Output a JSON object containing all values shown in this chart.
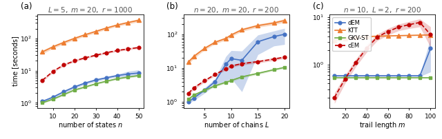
{
  "panel_a": {
    "title": "$L = 5,\\ m = 20,\\ r = 1000$",
    "xlabel": "number of states $n$",
    "x": [
      5,
      10,
      15,
      20,
      25,
      30,
      35,
      40,
      45,
      50
    ],
    "dEM": [
      1.1,
      1.5,
      2.2,
      3.1,
      4.1,
      5.1,
      6.0,
      7.0,
      7.8,
      8.4
    ],
    "KTT": [
      38,
      55,
      75,
      100,
      130,
      165,
      210,
      260,
      310,
      365
    ],
    "GKV": [
      1.0,
      1.3,
      1.8,
      2.5,
      3.1,
      3.9,
      4.7,
      5.6,
      6.3,
      7.0
    ],
    "cEM": [
      5.0,
      9.5,
      15,
      20,
      25,
      30,
      36,
      42,
      47,
      52
    ],
    "dEM_lo": [
      1.0,
      1.35,
      1.95,
      2.8,
      3.7,
      4.6,
      5.5,
      6.3,
      6.5,
      6.8
    ],
    "dEM_hi": [
      1.2,
      1.65,
      2.45,
      3.4,
      4.5,
      5.6,
      6.5,
      7.7,
      9.5,
      10.5
    ],
    "KTT_lo": [
      33,
      49,
      67,
      90,
      117,
      149,
      190,
      236,
      280,
      325
    ],
    "KTT_hi": [
      43,
      61,
      83,
      110,
      143,
      181,
      230,
      284,
      340,
      405
    ],
    "GKV_lo": [
      0.95,
      1.23,
      1.7,
      2.35,
      2.9,
      3.65,
      4.4,
      5.25,
      5.9,
      6.55
    ],
    "GKV_hi": [
      1.05,
      1.37,
      1.9,
      2.65,
      3.3,
      4.15,
      5.0,
      5.95,
      6.7,
      7.45
    ],
    "cEM_lo": [
      4.5,
      8.7,
      13.8,
      18.5,
      23.2,
      28.0,
      33.5,
      39.0,
      43.5,
      48.0
    ],
    "cEM_hi": [
      5.5,
      10.3,
      16.2,
      21.5,
      26.8,
      32.0,
      38.5,
      45.0,
      50.5,
      56.0
    ]
  },
  "panel_b": {
    "title": "$n = 20,\\ m = 20,\\ r = 200$",
    "xlabel": "number of chains $L$",
    "x": [
      2,
      3,
      5,
      7,
      9,
      10,
      12,
      15,
      18,
      20
    ],
    "dEM": [
      1.0,
      1.3,
      2.2,
      4.0,
      13.0,
      19.0,
      17.0,
      60.0,
      85.0,
      100.0
    ],
    "KTT": [
      15,
      22,
      38,
      58,
      75,
      95,
      135,
      180,
      215,
      255
    ],
    "GKV": [
      1.2,
      1.6,
      2.2,
      3.0,
      3.8,
      4.3,
      5.5,
      7.0,
      9.0,
      10.5
    ],
    "cEM": [
      1.8,
      2.6,
      4.2,
      6.5,
      9.5,
      11.5,
      13.5,
      15.5,
      18.5,
      21.0
    ],
    "dEM_lo": [
      0.9,
      1.1,
      1.8,
      3.2,
      4.0,
      5.0,
      2.0,
      25.0,
      45.0,
      50.0
    ],
    "dEM_hi": [
      1.1,
      1.5,
      2.6,
      4.8,
      22.0,
      33.0,
      32.0,
      95.0,
      125.0,
      150.0
    ],
    "KTT_lo": [
      13,
      19,
      34,
      52,
      67,
      85,
      120,
      160,
      190,
      225
    ],
    "KTT_hi": [
      17,
      25,
      42,
      64,
      83,
      105,
      150,
      200,
      240,
      285
    ],
    "GKV_lo": [
      1.1,
      1.48,
      2.05,
      2.8,
      3.55,
      4.0,
      5.1,
      6.5,
      8.4,
      9.8
    ],
    "GKV_hi": [
      1.3,
      1.72,
      2.35,
      3.2,
      4.05,
      4.6,
      5.9,
      7.5,
      9.6,
      11.2
    ],
    "cEM_lo": [
      1.6,
      2.3,
      3.8,
      5.9,
      8.7,
      10.5,
      12.3,
      14.0,
      16.7,
      19.0
    ],
    "cEM_hi": [
      2.0,
      2.9,
      4.6,
      7.1,
      10.3,
      12.5,
      14.7,
      17.0,
      20.3,
      23.0
    ]
  },
  "panel_c": {
    "title": "$n = 10,\\ L = 2,\\ r = 200$",
    "xlabel": "trail length $m$",
    "x": [
      10,
      20,
      30,
      40,
      50,
      60,
      70,
      80,
      90,
      100
    ],
    "dEM": [
      0.58,
      0.58,
      0.58,
      0.58,
      0.58,
      0.58,
      0.58,
      0.58,
      0.58,
      2.2
    ],
    "KTT": [
      3.2,
      3.6,
      3.8,
      3.9,
      4.0,
      4.05,
      4.1,
      4.15,
      4.2,
      4.25
    ],
    "GKV": [
      0.52,
      0.52,
      0.52,
      0.52,
      0.52,
      0.52,
      0.52,
      0.52,
      0.52,
      0.52
    ],
    "cEM": [
      0.2,
      0.5,
      1.1,
      2.2,
      3.8,
      5.0,
      6.2,
      7.0,
      7.8,
      4.3
    ],
    "dEM_lo": [
      0.56,
      0.56,
      0.56,
      0.56,
      0.56,
      0.56,
      0.56,
      0.56,
      0.56,
      0.7
    ],
    "dEM_hi": [
      0.6,
      0.6,
      0.6,
      0.6,
      0.6,
      0.6,
      0.6,
      0.6,
      0.6,
      3.7
    ],
    "KTT_lo": [
      2.9,
      3.25,
      3.6,
      3.75,
      3.88,
      3.95,
      4.0,
      4.05,
      4.1,
      4.15
    ],
    "KTT_hi": [
      3.5,
      3.95,
      4.0,
      4.05,
      4.12,
      4.15,
      4.2,
      4.25,
      4.3,
      4.35
    ],
    "GKV_lo": [
      0.51,
      0.51,
      0.51,
      0.51,
      0.51,
      0.51,
      0.51,
      0.51,
      0.51,
      0.51
    ],
    "GKV_hi": [
      0.53,
      0.53,
      0.53,
      0.53,
      0.53,
      0.53,
      0.53,
      0.53,
      0.53,
      0.53
    ],
    "cEM_lo": [
      0.15,
      0.4,
      0.9,
      1.8,
      3.2,
      4.2,
      5.2,
      5.8,
      6.3,
      2.3
    ],
    "cEM_hi": [
      0.25,
      0.6,
      1.3,
      2.6,
      4.4,
      5.8,
      7.2,
      8.2,
      9.3,
      6.3
    ]
  },
  "colors": {
    "dEM": "#4472c4",
    "KTT": "#ed7d31",
    "GKV": "#70ad47",
    "cEM": "#c00000"
  },
  "ylabel": "time [seconds]",
  "panel_labels": [
    "(a)",
    "(b)",
    "(c)"
  ]
}
